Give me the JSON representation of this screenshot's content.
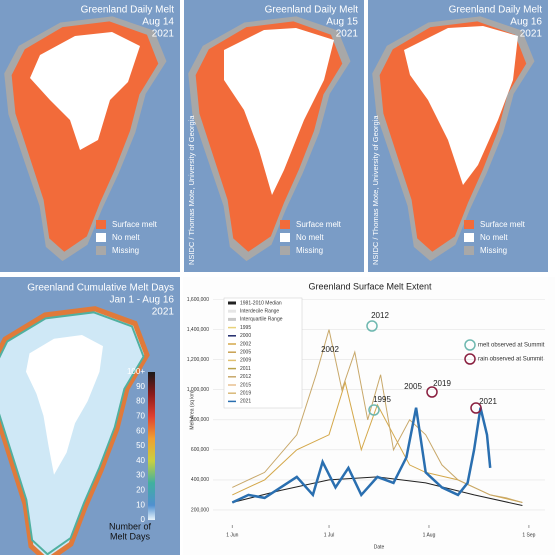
{
  "daily_melt_panels": [
    {
      "title": "Greenland Daily Melt",
      "date": "Aug 14",
      "year": "2021"
    },
    {
      "title": "Greenland Daily Melt",
      "date": "Aug 15",
      "year": "2021"
    },
    {
      "title": "Greenland Daily Melt",
      "date": "Aug 16",
      "year": "2021"
    }
  ],
  "daily_legend": [
    "Surface melt",
    "No melt",
    "Missing"
  ],
  "credit": "NSIDC / Thomas Mote, University of Georgia",
  "cumulative": {
    "title": "Greenland Cumulative Melt Days",
    "dates": "Jan 1 - Aug 16",
    "year": "2021",
    "colorbar_ticks": [
      {
        "value": 100,
        "label": "100+"
      },
      90,
      80,
      70,
      60,
      50,
      40,
      30,
      20,
      10,
      0
    ],
    "colorbar_label": [
      "Number of",
      "Melt Days"
    ]
  },
  "chart_data": {
    "type": "line",
    "title": "Greenland Surface Melt Extent",
    "xlabel": "Date",
    "ylabel": "Melt Area (sq km)",
    "xlim": [
      -6,
      97
    ],
    "xticks": [
      {
        "value": 0,
        "label": "1 Jun"
      },
      {
        "value": 30,
        "label": "1 Jul"
      },
      {
        "value": 61,
        "label": "1 Aug"
      },
      {
        "value": 92,
        "label": "1 Sep"
      }
    ],
    "ylim": [
      100000,
      1630000
    ],
    "yticks": [
      {
        "value": 200000,
        "label": "200,000"
      },
      {
        "value": 400000,
        "label": "400,000"
      },
      {
        "value": 600000,
        "label": "600,000"
      },
      {
        "value": 800000,
        "label": "800,000"
      },
      {
        "value": 1000000,
        "label": "1,000,000"
      },
      {
        "value": 1200000,
        "label": "1,200,000"
      },
      {
        "value": 1400000,
        "label": "1,400,000"
      },
      {
        "value": 1600000,
        "label": "1,600,000"
      }
    ],
    "legend": [
      {
        "label": "1981-2010 Median",
        "color": "#222222"
      },
      {
        "label": "Interdecile Range",
        "color": "#e6e6e6"
      },
      {
        "label": "Interquartile Range",
        "color": "#c8c8c8"
      },
      {
        "label": "1995",
        "color": "#e8d27a"
      },
      {
        "label": "2000",
        "color": "#1f2a6b"
      },
      {
        "label": "2002",
        "color": "#d4a84a"
      },
      {
        "label": "2005",
        "color": "#c8a050"
      },
      {
        "label": "2009",
        "color": "#e0c070"
      },
      {
        "label": "2011",
        "color": "#b9a24a"
      },
      {
        "label": "2012",
        "color": "#c8a86a"
      },
      {
        "label": "2015",
        "color": "#e8c090"
      },
      {
        "label": "2019",
        "color": "#d8b878"
      },
      {
        "label": "2021",
        "color": "#2a6fb0"
      }
    ],
    "series": [
      {
        "color": "#222222",
        "width": 1,
        "x": [
          0,
          15,
          30,
          45,
          60,
          75,
          90
        ],
        "values": [
          250000,
          330000,
          400000,
          420000,
          380000,
          300000,
          230000
        ]
      },
      {
        "color": "#d4a84a",
        "width": 1,
        "x": [
          0,
          10,
          20,
          30,
          35,
          40,
          45,
          50,
          55,
          60,
          70,
          80,
          90
        ],
        "values": [
          300000,
          400000,
          600000,
          700000,
          1050000,
          600000,
          900000,
          700000,
          500000,
          450000,
          400000,
          300000,
          250000
        ]
      },
      {
        "color": "#c8a86a",
        "width": 1,
        "x": [
          0,
          10,
          20,
          26,
          30,
          34,
          38,
          42,
          46,
          50,
          55,
          60,
          65,
          70,
          75,
          80,
          85,
          90
        ],
        "values": [
          350000,
          450000,
          700000,
          1100000,
          1400000,
          1000000,
          1250000,
          800000,
          1100000,
          600000,
          800000,
          700000,
          500000,
          400000,
          350000,
          300000,
          280000,
          250000
        ]
      },
      {
        "color": "#2a6fb0",
        "width": 2.5,
        "x": [
          0,
          5,
          10,
          15,
          20,
          25,
          28,
          32,
          36,
          40,
          45,
          50,
          54,
          57,
          60,
          65,
          70,
          73,
          75,
          77,
          79,
          80
        ],
        "values": [
          250000,
          300000,
          280000,
          350000,
          420000,
          300000,
          520000,
          350000,
          480000,
          300000,
          420000,
          380000,
          550000,
          880000,
          450000,
          350000,
          300000,
          380000,
          600000,
          880000,
          700000,
          480000
        ]
      }
    ],
    "annotations": [
      "2012",
      "2002",
      "2005",
      "2019",
      "1995",
      "2021"
    ],
    "summit_legend": [
      {
        "label": "melt observed at Summit",
        "color": "#6fb8b0"
      },
      {
        "label": "rain observed at Summit",
        "color": "#8a2040"
      }
    ]
  }
}
